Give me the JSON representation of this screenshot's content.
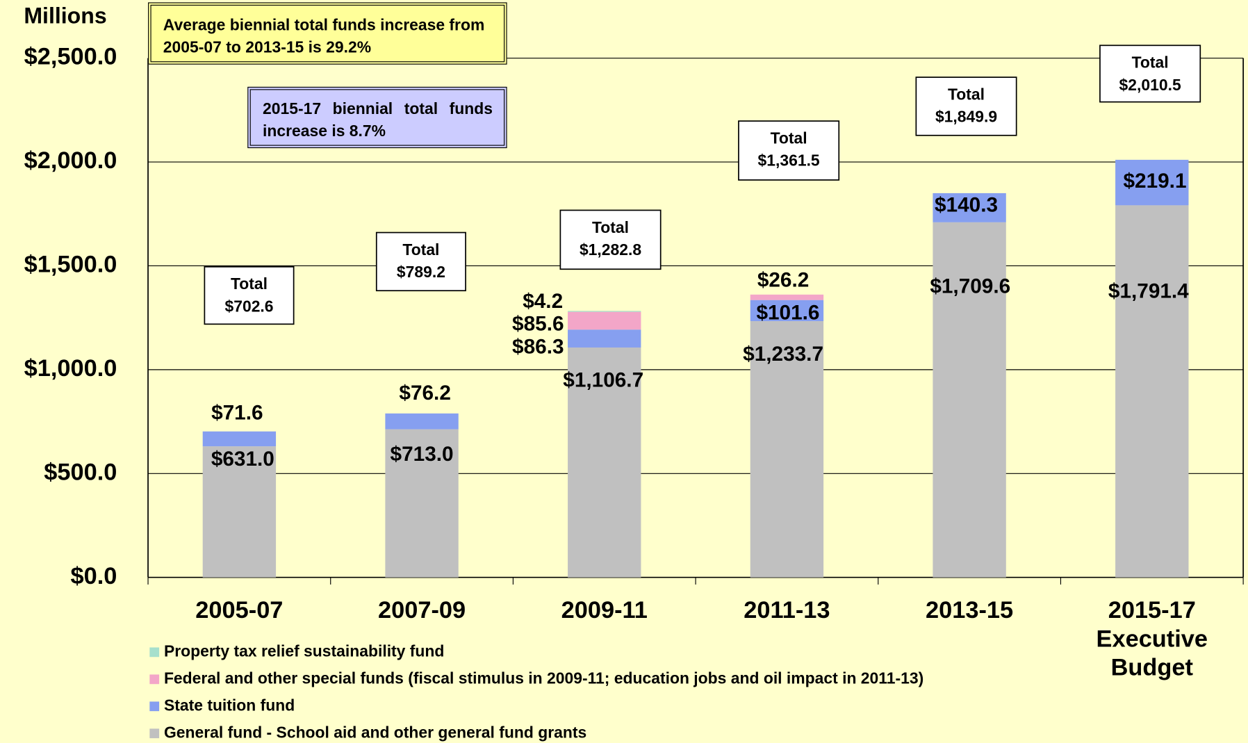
{
  "chart_data": {
    "type": "stacked_bar",
    "y_axis_label": "Millions",
    "annotations": [
      "Average biennial total funds increase from 2005-07 to 2013-15 is 29.2%",
      "2015-17 biennial total funds increase is 8.7%"
    ],
    "categories": [
      "2005-07",
      "2007-09",
      "2009-11",
      "2011-13",
      "2013-15",
      "2015-17\nExecutive\nBudget"
    ],
    "series": [
      {
        "name": "General fund - School aid and other general fund grants",
        "color": "#c0c0c0",
        "values": [
          631.0,
          713.0,
          1106.7,
          1233.7,
          1709.6,
          1791.4
        ],
        "value_labels": [
          "$631.0",
          "$713.0",
          "$1,106.7",
          "$1,233.7",
          "$1,709.6",
          "$1,791.4"
        ]
      },
      {
        "name": "State tuition fund",
        "color": "#869ff0",
        "values": [
          71.6,
          76.2,
          86.3,
          101.6,
          140.3,
          219.1
        ],
        "value_labels": [
          "$71.6",
          "$76.2",
          "$86.3",
          "$101.6",
          "$140.3",
          "$219.1"
        ]
      },
      {
        "name": "Federal and other special funds (fiscal stimulus in 2009-11; education jobs and oil impact in 2011-13)",
        "color": "#f3a6c8",
        "values": [
          null,
          null,
          85.6,
          26.2,
          null,
          null
        ],
        "value_labels": [
          null,
          null,
          "$85.6",
          "$26.2",
          null,
          null
        ]
      },
      {
        "name": "Property tax relief sustainability fund",
        "color": "#a6e0cc",
        "values": [
          null,
          null,
          4.2,
          null,
          null,
          null
        ],
        "value_labels": [
          null,
          null,
          "$4.2",
          null,
          null,
          null
        ]
      }
    ],
    "total_label": "Total",
    "totals": [
      702.6,
      789.2,
      1282.8,
      1361.5,
      1849.9,
      2010.5
    ],
    "total_labels": [
      "$702.6",
      "$789.2",
      "$1,282.8",
      "$1,361.5",
      "$1,849.9",
      "$2,010.5"
    ],
    "ylim": [
      0,
      2500
    ],
    "yticks": [
      {
        "value": 0,
        "label": "$0.0"
      },
      {
        "value": 500,
        "label": "$500.0"
      },
      {
        "value": 1000,
        "label": "$1,000.0"
      },
      {
        "value": 1500,
        "label": "$1,500.0"
      },
      {
        "value": 2000,
        "label": "$2,000.0"
      },
      {
        "value": 2500,
        "label": "$2,500.0"
      }
    ],
    "grid": true
  }
}
